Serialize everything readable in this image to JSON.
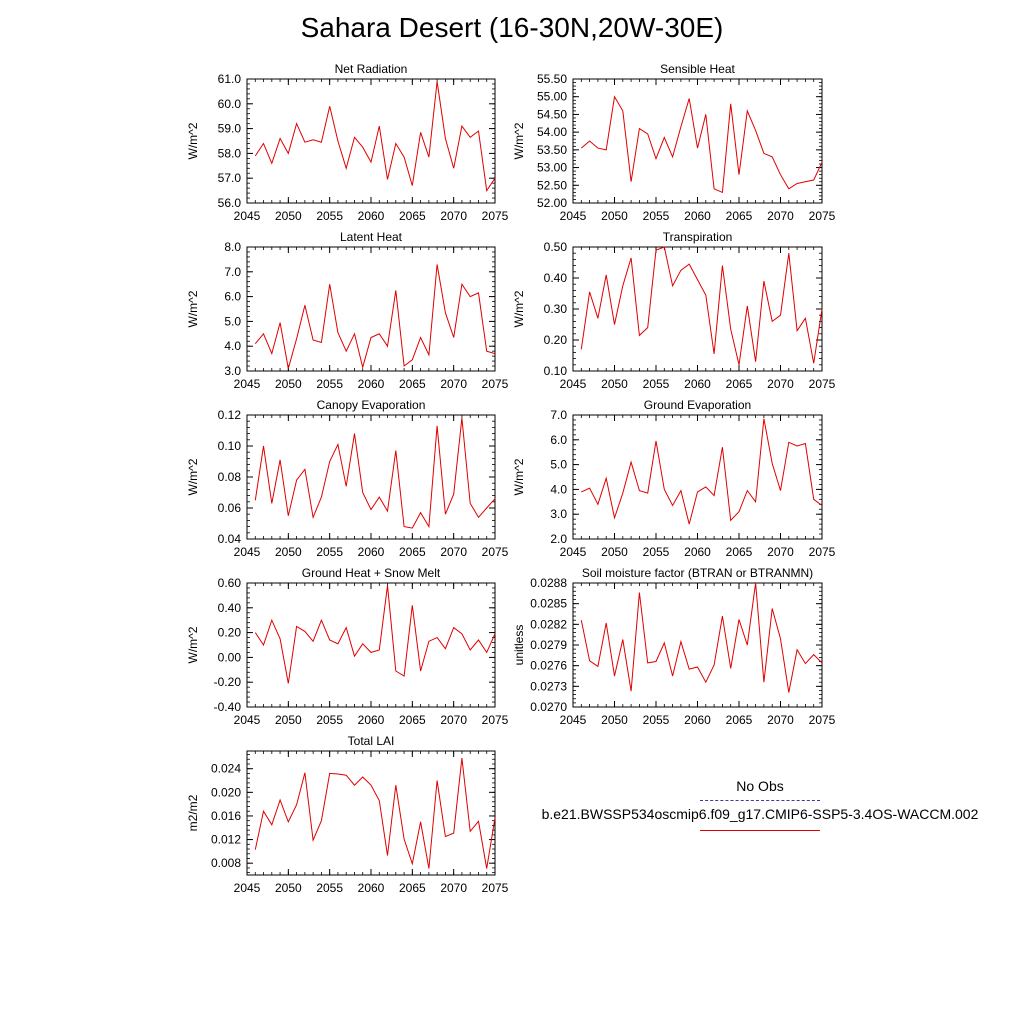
{
  "title": "Sahara Desert (16-30N,20W-30E)",
  "legend": {
    "obs_label": "No Obs",
    "model_label": "b.e21.BWSSP534oscmip6.f09_g17.CMIP6-SSP5-3.4OS-WACCM.002",
    "obs_color": "#3a3a9a",
    "model_color": "#e00000"
  },
  "chart_data": [
    {
      "type": "line",
      "title": "Net Radiation",
      "ylabel": "W/m^2",
      "xlim": [
        2045,
        2075
      ],
      "ylim": [
        56.0,
        61.0
      ],
      "yticks": [
        "56.0",
        "57.0",
        "58.0",
        "59.0",
        "60.0",
        "61.0"
      ],
      "ytick_values": [
        56,
        57,
        58,
        59,
        60,
        61
      ],
      "xticks": [
        "2045",
        "2050",
        "2055",
        "2060",
        "2065",
        "2070",
        "2075"
      ],
      "x": [
        2046,
        2047,
        2048,
        2049,
        2050,
        2051,
        2052,
        2053,
        2054,
        2055,
        2056,
        2057,
        2058,
        2059,
        2060,
        2061,
        2062,
        2063,
        2064,
        2065,
        2066,
        2067,
        2068,
        2069,
        2070,
        2071,
        2072,
        2073,
        2074,
        2075
      ],
      "series": [
        {
          "values": [
            57.9,
            58.4,
            57.6,
            58.6,
            58.0,
            59.2,
            58.45,
            58.55,
            58.45,
            59.9,
            58.5,
            57.4,
            58.65,
            58.25,
            57.65,
            59.1,
            56.95,
            58.4,
            57.85,
            56.7,
            58.85,
            57.85,
            60.9,
            58.6,
            57.4,
            59.1,
            58.65,
            58.9,
            56.5,
            57.0
          ]
        }
      ]
    },
    {
      "type": "line",
      "title": "Sensible Heat",
      "ylabel": "W/m^2",
      "xlim": [
        2045,
        2075
      ],
      "ylim": [
        52.0,
        55.5
      ],
      "yticks": [
        "52.00",
        "52.50",
        "53.00",
        "53.50",
        "54.00",
        "54.50",
        "55.00",
        "55.50"
      ],
      "ytick_values": [
        52.0,
        52.5,
        53.0,
        53.5,
        54.0,
        54.5,
        55.0,
        55.5
      ],
      "xticks": [
        "2045",
        "2050",
        "2055",
        "2060",
        "2065",
        "2070",
        "2075"
      ],
      "x": [
        2046,
        2047,
        2048,
        2049,
        2050,
        2051,
        2052,
        2053,
        2054,
        2055,
        2056,
        2057,
        2058,
        2059,
        2060,
        2061,
        2062,
        2063,
        2064,
        2065,
        2066,
        2067,
        2068,
        2069,
        2070,
        2071,
        2072,
        2073,
        2074,
        2075
      ],
      "series": [
        {
          "values": [
            53.55,
            53.75,
            53.55,
            53.5,
            55.0,
            54.6,
            52.6,
            54.1,
            53.95,
            53.25,
            53.85,
            53.3,
            54.15,
            54.95,
            53.55,
            54.5,
            52.4,
            52.3,
            54.8,
            52.8,
            54.6,
            54.05,
            53.4,
            53.3,
            52.8,
            52.4,
            52.55,
            52.6,
            52.65,
            53.15
          ]
        }
      ]
    },
    {
      "type": "line",
      "title": "Latent Heat",
      "ylabel": "W/m^2",
      "xlim": [
        2045,
        2075
      ],
      "ylim": [
        3.0,
        8.0
      ],
      "yticks": [
        "3.0",
        "4.0",
        "5.0",
        "6.0",
        "7.0",
        "8.0"
      ],
      "ytick_values": [
        3,
        4,
        5,
        6,
        7,
        8
      ],
      "xticks": [
        "2045",
        "2050",
        "2055",
        "2060",
        "2065",
        "2070",
        "2075"
      ],
      "x": [
        2046,
        2047,
        2048,
        2049,
        2050,
        2051,
        2052,
        2053,
        2054,
        2055,
        2056,
        2057,
        2058,
        2059,
        2060,
        2061,
        2062,
        2063,
        2064,
        2065,
        2066,
        2067,
        2068,
        2069,
        2070,
        2071,
        2072,
        2073,
        2074,
        2075
      ],
      "series": [
        {
          "values": [
            4.1,
            4.5,
            3.7,
            4.95,
            3.1,
            4.3,
            5.65,
            4.25,
            4.15,
            6.5,
            4.55,
            3.8,
            4.5,
            3.15,
            4.35,
            4.5,
            4.0,
            6.25,
            3.2,
            3.45,
            4.35,
            3.65,
            7.3,
            5.35,
            4.35,
            6.5,
            6.0,
            6.15,
            3.8,
            3.7
          ]
        }
      ]
    },
    {
      "type": "line",
      "title": "Transpiration",
      "ylabel": "W/m^2",
      "xlim": [
        2045,
        2075
      ],
      "ylim": [
        0.1,
        0.5
      ],
      "yticks": [
        "0.10",
        "0.20",
        "0.30",
        "0.40",
        "0.50"
      ],
      "ytick_values": [
        0.1,
        0.2,
        0.3,
        0.4,
        0.5
      ],
      "xticks": [
        "2045",
        "2050",
        "2055",
        "2060",
        "2065",
        "2070",
        "2075"
      ],
      "x": [
        2046,
        2047,
        2048,
        2049,
        2050,
        2051,
        2052,
        2053,
        2054,
        2055,
        2056,
        2057,
        2058,
        2059,
        2060,
        2061,
        2062,
        2063,
        2064,
        2065,
        2066,
        2067,
        2068,
        2069,
        2070,
        2071,
        2072,
        2073,
        2074,
        2075
      ],
      "series": [
        {
          "values": [
            0.17,
            0.355,
            0.27,
            0.41,
            0.25,
            0.375,
            0.465,
            0.215,
            0.24,
            0.49,
            0.5,
            0.375,
            0.425,
            0.445,
            0.395,
            0.345,
            0.155,
            0.44,
            0.235,
            0.12,
            0.31,
            0.13,
            0.39,
            0.26,
            0.28,
            0.48,
            0.23,
            0.27,
            0.125,
            0.3
          ]
        }
      ]
    },
    {
      "type": "line",
      "title": "Canopy Evaporation",
      "ylabel": "W/m^2",
      "xlim": [
        2045,
        2075
      ],
      "ylim": [
        0.04,
        0.12
      ],
      "yticks": [
        "0.04",
        "0.06",
        "0.08",
        "0.10",
        "0.12"
      ],
      "ytick_values": [
        0.04,
        0.06,
        0.08,
        0.1,
        0.12
      ],
      "xticks": [
        "2045",
        "2050",
        "2055",
        "2060",
        "2065",
        "2070",
        "2075"
      ],
      "x": [
        2046,
        2047,
        2048,
        2049,
        2050,
        2051,
        2052,
        2053,
        2054,
        2055,
        2056,
        2057,
        2058,
        2059,
        2060,
        2061,
        2062,
        2063,
        2064,
        2065,
        2066,
        2067,
        2068,
        2069,
        2070,
        2071,
        2072,
        2073,
        2074,
        2075
      ],
      "series": [
        {
          "values": [
            0.065,
            0.1,
            0.063,
            0.091,
            0.055,
            0.078,
            0.085,
            0.054,
            0.067,
            0.09,
            0.101,
            0.074,
            0.108,
            0.07,
            0.059,
            0.067,
            0.058,
            0.097,
            0.048,
            0.047,
            0.057,
            0.048,
            0.113,
            0.056,
            0.069,
            0.118,
            0.063,
            0.054,
            0.06,
            0.066
          ]
        }
      ]
    },
    {
      "type": "line",
      "title": "Ground Evaporation",
      "ylabel": "W/m^2",
      "xlim": [
        2045,
        2075
      ],
      "ylim": [
        2.0,
        7.0
      ],
      "yticks": [
        "2.0",
        "3.0",
        "4.0",
        "5.0",
        "6.0",
        "7.0"
      ],
      "ytick_values": [
        2,
        3,
        4,
        5,
        6,
        7
      ],
      "xticks": [
        "2045",
        "2050",
        "2055",
        "2060",
        "2065",
        "2070",
        "2075"
      ],
      "x": [
        2046,
        2047,
        2048,
        2049,
        2050,
        2051,
        2052,
        2053,
        2054,
        2055,
        2056,
        2057,
        2058,
        2059,
        2060,
        2061,
        2062,
        2063,
        2064,
        2065,
        2066,
        2067,
        2068,
        2069,
        2070,
        2071,
        2072,
        2073,
        2074,
        2075
      ],
      "series": [
        {
          "values": [
            3.9,
            4.05,
            3.4,
            4.45,
            2.85,
            3.85,
            5.1,
            3.95,
            3.85,
            5.95,
            4.0,
            3.35,
            3.95,
            2.6,
            3.9,
            4.1,
            3.75,
            5.7,
            2.75,
            3.1,
            3.95,
            3.5,
            6.85,
            5.05,
            3.95,
            5.9,
            5.75,
            5.85,
            3.6,
            3.35
          ]
        }
      ]
    },
    {
      "type": "line",
      "title": "Ground Heat + Snow Melt",
      "ylabel": "W/m^2",
      "xlim": [
        2045,
        2075
      ],
      "ylim": [
        -0.4,
        0.6
      ],
      "yticks": [
        "-0.40",
        "-0.20",
        "0.00",
        "0.20",
        "0.40",
        "0.60"
      ],
      "ytick_values": [
        -0.4,
        -0.2,
        0.0,
        0.2,
        0.4,
        0.6
      ],
      "xticks": [
        "2045",
        "2050",
        "2055",
        "2060",
        "2065",
        "2070",
        "2075"
      ],
      "x": [
        2046,
        2047,
        2048,
        2049,
        2050,
        2051,
        2052,
        2053,
        2054,
        2055,
        2056,
        2057,
        2058,
        2059,
        2060,
        2061,
        2062,
        2063,
        2064,
        2065,
        2066,
        2067,
        2068,
        2069,
        2070,
        2071,
        2072,
        2073,
        2074,
        2075
      ],
      "series": [
        {
          "values": [
            0.2,
            0.1,
            0.3,
            0.15,
            -0.21,
            0.25,
            0.21,
            0.13,
            0.3,
            0.14,
            0.11,
            0.24,
            0.01,
            0.11,
            0.04,
            0.06,
            0.58,
            -0.11,
            -0.15,
            0.42,
            -0.11,
            0.13,
            0.16,
            0.07,
            0.24,
            0.19,
            0.06,
            0.14,
            0.04,
            0.19
          ]
        }
      ]
    },
    {
      "type": "line",
      "title": "Soil moisture factor (BTRAN or BTRANMN)",
      "ylabel": "unitless",
      "xlim": [
        2045,
        2075
      ],
      "ylim": [
        0.027,
        0.0288
      ],
      "yticks": [
        "0.0270",
        "0.0273",
        "0.0276",
        "0.0279",
        "0.0282",
        "0.0285",
        "0.0288"
      ],
      "ytick_values": [
        0.027,
        0.0273,
        0.0276,
        0.0279,
        0.0282,
        0.0285,
        0.0288
      ],
      "xticks": [
        "2045",
        "2050",
        "2055",
        "2060",
        "2065",
        "2070",
        "2075"
      ],
      "x": [
        2046,
        2047,
        2048,
        2049,
        2050,
        2051,
        2052,
        2053,
        2054,
        2055,
        2056,
        2057,
        2058,
        2059,
        2060,
        2061,
        2062,
        2063,
        2064,
        2065,
        2066,
        2067,
        2068,
        2069,
        2070,
        2071,
        2072,
        2073,
        2074,
        2075
      ],
      "series": [
        {
          "values": [
            0.02826,
            0.02767,
            0.02759,
            0.02822,
            0.02745,
            0.02798,
            0.02723,
            0.02866,
            0.02764,
            0.02766,
            0.02793,
            0.02745,
            0.02795,
            0.02755,
            0.02758,
            0.02736,
            0.02761,
            0.02832,
            0.02756,
            0.02827,
            0.0279,
            0.0288,
            0.02736,
            0.02843,
            0.02799,
            0.02721,
            0.02783,
            0.02763,
            0.02776,
            0.02764
          ]
        }
      ]
    },
    {
      "type": "line",
      "title": "Total LAI",
      "ylabel": "m2/m2",
      "xlim": [
        2045,
        2075
      ],
      "ylim": [
        0.006,
        0.027
      ],
      "yticks": [
        "0.008",
        "0.012",
        "0.016",
        "0.020",
        "0.024"
      ],
      "ytick_values": [
        0.008,
        0.012,
        0.016,
        0.02,
        0.024
      ],
      "xticks": [
        "2045",
        "2050",
        "2055",
        "2060",
        "2065",
        "2070",
        "2075"
      ],
      "x": [
        2046,
        2047,
        2048,
        2049,
        2050,
        2051,
        2052,
        2053,
        2054,
        2055,
        2056,
        2057,
        2058,
        2059,
        2060,
        2061,
        2062,
        2063,
        2064,
        2065,
        2066,
        2067,
        2068,
        2069,
        2070,
        2071,
        2072,
        2073,
        2074,
        2075
      ],
      "series": [
        {
          "values": [
            0.0103,
            0.0168,
            0.0145,
            0.0187,
            0.015,
            0.0179,
            0.0233,
            0.0119,
            0.0152,
            0.0232,
            0.0231,
            0.0229,
            0.0212,
            0.0226,
            0.0212,
            0.0186,
            0.0093,
            0.0212,
            0.0121,
            0.0079,
            0.015,
            0.0071,
            0.022,
            0.0125,
            0.0131,
            0.0258,
            0.0134,
            0.0151,
            0.0071,
            0.0157
          ]
        }
      ]
    }
  ]
}
